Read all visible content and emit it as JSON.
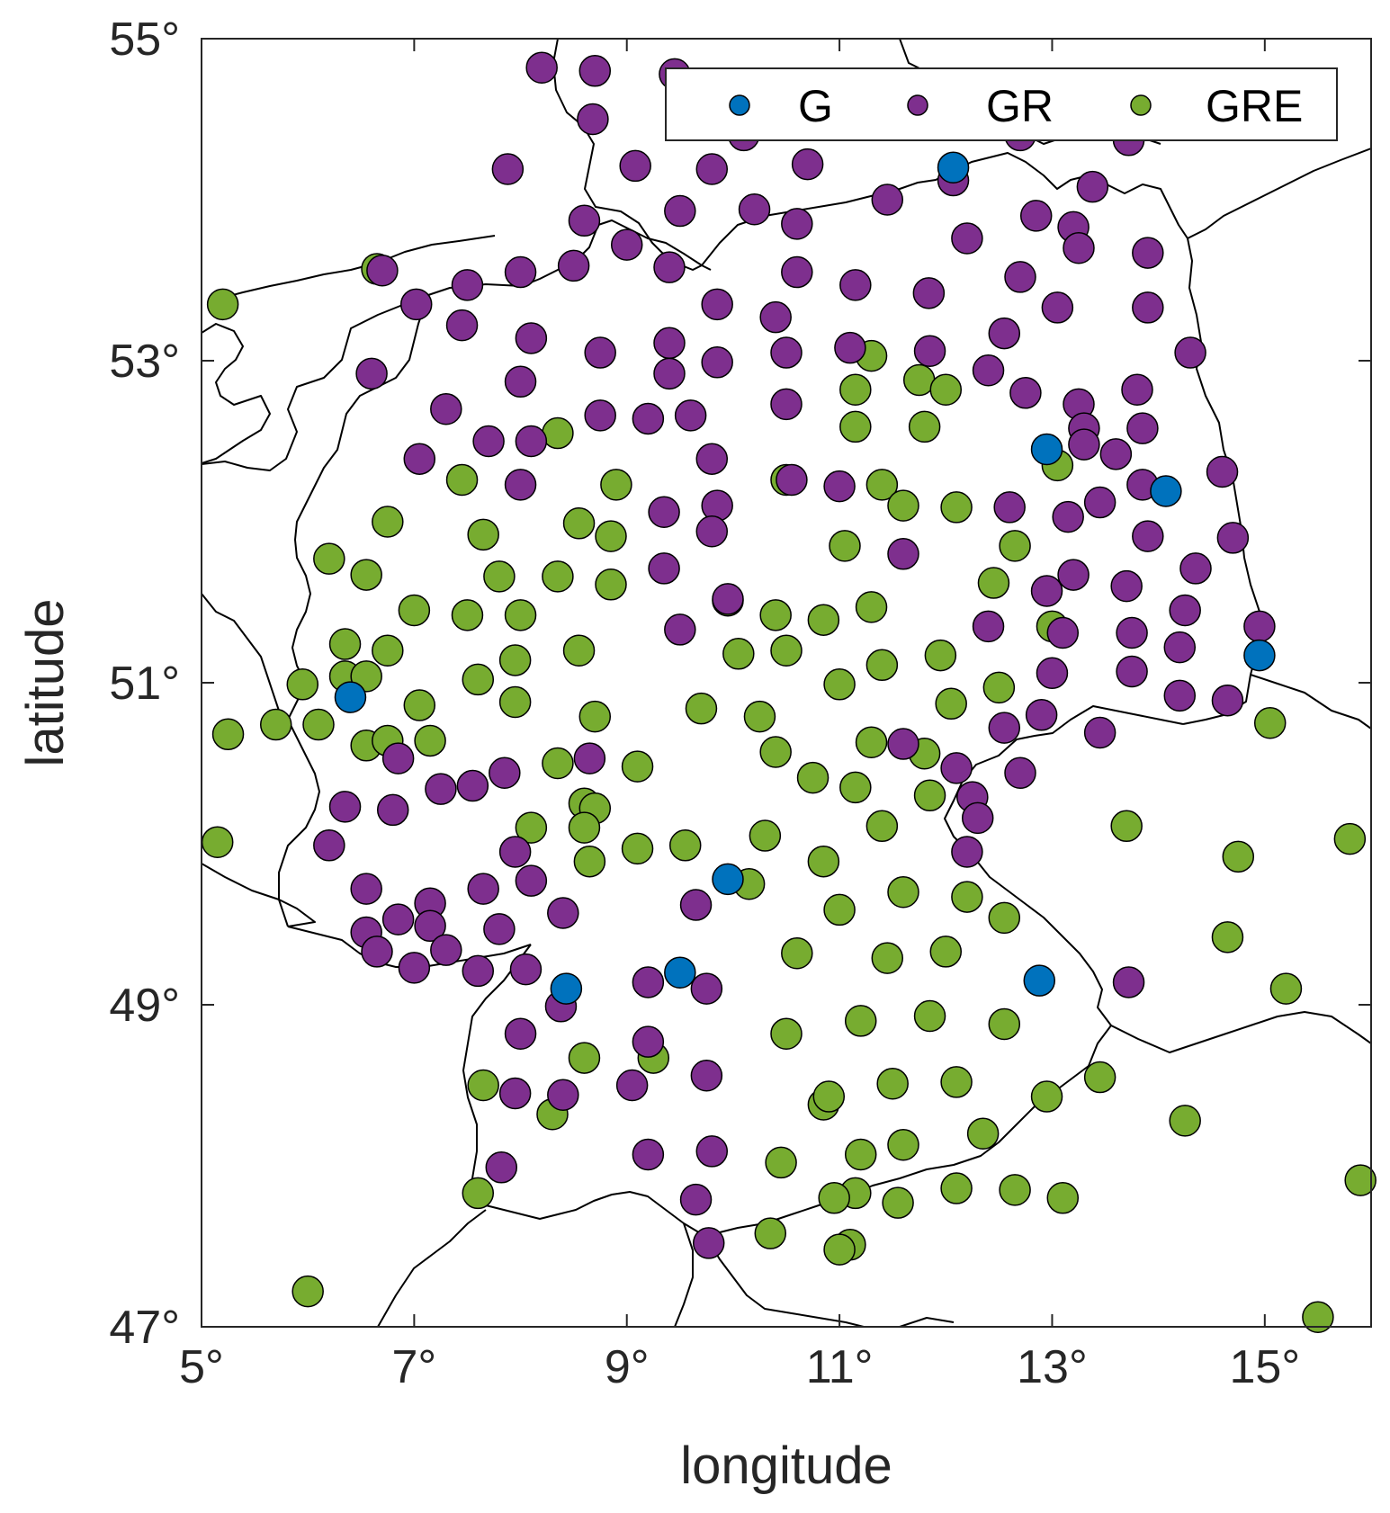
{
  "chart_data": {
    "type": "scatter",
    "map": "Germany and neighbouring regions",
    "xlabel": "longitude",
    "ylabel": "latitude",
    "xlim": [
      5,
      16
    ],
    "ylim": [
      47,
      55
    ],
    "xticks": [
      5,
      7,
      9,
      11,
      13,
      15
    ],
    "yticks": [
      47,
      49,
      51,
      53,
      55
    ],
    "xtick_labels": [
      "5°",
      "7°",
      "9°",
      "11°",
      "13°",
      "15°"
    ],
    "ytick_labels": [
      "47°",
      "49°",
      "51°",
      "53°",
      "55°"
    ],
    "legend_position": "top-right",
    "legend": [
      "G",
      "GR",
      "GRE"
    ],
    "series": [
      {
        "name": "G",
        "color": "#0072BD",
        "points": [
          [
            12.07,
            54.2
          ],
          [
            12.95,
            52.45
          ],
          [
            14.07,
            52.19
          ],
          [
            14.95,
            51.17
          ],
          [
            6.4,
            50.91
          ],
          [
            9.95,
            49.78
          ],
          [
            9.5,
            49.2
          ],
          [
            8.43,
            49.1
          ],
          [
            12.88,
            49.15
          ]
        ]
      },
      {
        "name": "GR",
        "color": "#7E2F8E",
        "points": [
          [
            8.2,
            54.82
          ],
          [
            8.7,
            54.8
          ],
          [
            9.45,
            54.78
          ],
          [
            10.1,
            54.4
          ],
          [
            12.7,
            54.4
          ],
          [
            13.72,
            54.37
          ],
          [
            8.68,
            54.5
          ],
          [
            7.88,
            54.19
          ],
          [
            9.08,
            54.21
          ],
          [
            9.8,
            54.19
          ],
          [
            10.7,
            54.22
          ],
          [
            12.07,
            54.12
          ],
          [
            11.45,
            54.0
          ],
          [
            13.38,
            54.08
          ],
          [
            8.6,
            53.87
          ],
          [
            9.5,
            53.93
          ],
          [
            10.2,
            53.94
          ],
          [
            10.6,
            53.85
          ],
          [
            12.85,
            53.9
          ],
          [
            13.2,
            53.83
          ],
          [
            13.25,
            53.7
          ],
          [
            9.0,
            53.72
          ],
          [
            12.2,
            53.76
          ],
          [
            13.9,
            53.67
          ],
          [
            6.7,
            53.56
          ],
          [
            8.0,
            53.55
          ],
          [
            8.5,
            53.59
          ],
          [
            9.4,
            53.58
          ],
          [
            10.6,
            53.55
          ],
          [
            12.7,
            53.52
          ],
          [
            7.5,
            53.47
          ],
          [
            11.15,
            53.47
          ],
          [
            11.84,
            53.42
          ],
          [
            7.02,
            53.35
          ],
          [
            9.85,
            53.35
          ],
          [
            10.4,
            53.27
          ],
          [
            13.05,
            53.33
          ],
          [
            13.9,
            53.33
          ],
          [
            7.45,
            53.22
          ],
          [
            12.55,
            53.17
          ],
          [
            8.1,
            53.14
          ],
          [
            9.4,
            53.11
          ],
          [
            8.75,
            53.05
          ],
          [
            10.5,
            53.05
          ],
          [
            11.1,
            53.08
          ],
          [
            11.85,
            53.06
          ],
          [
            14.3,
            53.05
          ],
          [
            6.6,
            52.92
          ],
          [
            9.4,
            52.92
          ],
          [
            9.85,
            52.99
          ],
          [
            12.4,
            52.94
          ],
          [
            8.0,
            52.87
          ],
          [
            12.75,
            52.8
          ],
          [
            13.8,
            52.82
          ],
          [
            7.3,
            52.7
          ],
          [
            8.75,
            52.66
          ],
          [
            9.2,
            52.64
          ],
          [
            9.6,
            52.66
          ],
          [
            10.5,
            52.73
          ],
          [
            13.25,
            52.73
          ],
          [
            13.3,
            52.58
          ],
          [
            13.85,
            52.58
          ],
          [
            7.7,
            52.5
          ],
          [
            8.1,
            52.5
          ],
          [
            13.3,
            52.48
          ],
          [
            13.6,
            52.42
          ],
          [
            7.05,
            52.39
          ],
          [
            9.8,
            52.39
          ],
          [
            14.6,
            52.31
          ],
          [
            10.55,
            52.26
          ],
          [
            11.0,
            52.22
          ],
          [
            13.85,
            52.23
          ],
          [
            8.0,
            52.23
          ],
          [
            13.45,
            52.12
          ],
          [
            9.85,
            52.1
          ],
          [
            9.35,
            52.06
          ],
          [
            12.6,
            52.09
          ],
          [
            13.15,
            52.03
          ],
          [
            9.8,
            51.94
          ],
          [
            13.9,
            51.91
          ],
          [
            14.7,
            51.9
          ],
          [
            11.6,
            51.8
          ],
          [
            9.35,
            51.71
          ],
          [
            14.35,
            51.71
          ],
          [
            13.2,
            51.67
          ],
          [
            13.7,
            51.6
          ],
          [
            12.95,
            51.57
          ],
          [
            9.95,
            51.52
          ],
          [
            14.25,
            51.45
          ],
          [
            12.4,
            51.35
          ],
          [
            9.5,
            51.33
          ],
          [
            14.95,
            51.35
          ],
          [
            13.1,
            51.31
          ],
          [
            13.75,
            51.31
          ],
          [
            14.2,
            51.22
          ],
          [
            13.0,
            51.06
          ],
          [
            13.75,
            51.07
          ],
          [
            14.2,
            50.92
          ],
          [
            14.65,
            50.89
          ],
          [
            12.9,
            50.8
          ],
          [
            12.55,
            50.72
          ],
          [
            13.45,
            50.69
          ],
          [
            11.6,
            50.62
          ],
          [
            6.85,
            50.53
          ],
          [
            8.65,
            50.53
          ],
          [
            7.85,
            50.44
          ],
          [
            12.7,
            50.44
          ],
          [
            12.1,
            50.47
          ],
          [
            7.25,
            50.34
          ],
          [
            7.55,
            50.36
          ],
          [
            6.35,
            50.23
          ],
          [
            6.8,
            50.21
          ],
          [
            12.25,
            50.29
          ],
          [
            12.3,
            50.16
          ],
          [
            6.2,
            49.99
          ],
          [
            12.2,
            49.95
          ],
          [
            7.95,
            49.95
          ],
          [
            8.1,
            49.77
          ],
          [
            6.55,
            49.72
          ],
          [
            7.65,
            49.72
          ],
          [
            9.65,
            49.62
          ],
          [
            6.85,
            49.53
          ],
          [
            7.15,
            49.63
          ],
          [
            7.15,
            49.49
          ],
          [
            6.55,
            49.45
          ],
          [
            7.8,
            49.47
          ],
          [
            8.4,
            49.57
          ],
          [
            6.65,
            49.33
          ],
          [
            7.3,
            49.34
          ],
          [
            7.0,
            49.23
          ],
          [
            7.6,
            49.21
          ],
          [
            8.05,
            49.22
          ],
          [
            9.2,
            49.14
          ],
          [
            9.75,
            49.1
          ],
          [
            13.72,
            49.14
          ],
          [
            8.38,
            48.99
          ],
          [
            8.0,
            48.82
          ],
          [
            9.2,
            48.77
          ],
          [
            9.75,
            48.56
          ],
          [
            9.05,
            48.5
          ],
          [
            7.95,
            48.45
          ],
          [
            8.4,
            48.44
          ],
          [
            9.2,
            48.07
          ],
          [
            9.8,
            48.09
          ],
          [
            7.82,
            47.99
          ],
          [
            9.65,
            47.79
          ],
          [
            9.77,
            47.52
          ]
        ]
      },
      {
        "name": "GRE",
        "color": "#77AC30",
        "points": [
          [
            5.2,
            53.35
          ],
          [
            6.65,
            53.57
          ],
          [
            11.3,
            53.03
          ],
          [
            11.75,
            52.88
          ],
          [
            12.0,
            52.82
          ],
          [
            11.15,
            52.82
          ],
          [
            11.15,
            52.59
          ],
          [
            11.8,
            52.59
          ],
          [
            8.35,
            52.55
          ],
          [
            13.05,
            52.35
          ],
          [
            7.45,
            52.26
          ],
          [
            10.5,
            52.26
          ],
          [
            8.9,
            52.23
          ],
          [
            11.4,
            52.23
          ],
          [
            11.6,
            52.1
          ],
          [
            12.1,
            52.09
          ],
          [
            6.75,
            52.0
          ],
          [
            8.55,
            51.99
          ],
          [
            7.65,
            51.92
          ],
          [
            8.85,
            51.91
          ],
          [
            11.05,
            51.85
          ],
          [
            12.65,
            51.85
          ],
          [
            6.2,
            51.77
          ],
          [
            6.55,
            51.67
          ],
          [
            7.8,
            51.66
          ],
          [
            8.35,
            51.66
          ],
          [
            12.45,
            51.62
          ],
          [
            8.85,
            51.61
          ],
          [
            9.95,
            51.51
          ],
          [
            11.3,
            51.47
          ],
          [
            7.0,
            51.45
          ],
          [
            7.5,
            51.42
          ],
          [
            8.0,
            51.42
          ],
          [
            10.4,
            51.42
          ],
          [
            10.85,
            51.39
          ],
          [
            13.0,
            51.35
          ],
          [
            6.35,
            51.24
          ],
          [
            6.75,
            51.2
          ],
          [
            8.55,
            51.2
          ],
          [
            10.5,
            51.2
          ],
          [
            10.05,
            51.18
          ],
          [
            7.95,
            51.14
          ],
          [
            11.95,
            51.17
          ],
          [
            11.4,
            51.11
          ],
          [
            6.35,
            51.04
          ],
          [
            6.55,
            51.04
          ],
          [
            5.95,
            50.99
          ],
          [
            7.6,
            51.02
          ],
          [
            11.0,
            50.99
          ],
          [
            12.5,
            50.97
          ],
          [
            7.05,
            50.86
          ],
          [
            7.95,
            50.88
          ],
          [
            9.7,
            50.84
          ],
          [
            12.05,
            50.87
          ],
          [
            5.25,
            50.68
          ],
          [
            5.7,
            50.74
          ],
          [
            6.1,
            50.74
          ],
          [
            6.55,
            50.61
          ],
          [
            6.75,
            50.64
          ],
          [
            7.15,
            50.64
          ],
          [
            8.7,
            50.79
          ],
          [
            10.25,
            50.79
          ],
          [
            15.05,
            50.75
          ],
          [
            10.4,
            50.57
          ],
          [
            11.3,
            50.63
          ],
          [
            11.8,
            50.56
          ],
          [
            8.35,
            50.5
          ],
          [
            9.1,
            50.48
          ],
          [
            10.75,
            50.41
          ],
          [
            11.15,
            50.35
          ],
          [
            11.85,
            50.3
          ],
          [
            8.6,
            50.25
          ],
          [
            8.7,
            50.22
          ],
          [
            5.15,
            50.01
          ],
          [
            8.1,
            50.1
          ],
          [
            8.6,
            50.1
          ],
          [
            10.3,
            50.05
          ],
          [
            11.4,
            50.11
          ],
          [
            13.7,
            50.11
          ],
          [
            15.8,
            50.03
          ],
          [
            9.1,
            49.97
          ],
          [
            9.55,
            49.99
          ],
          [
            8.65,
            49.89
          ],
          [
            10.85,
            49.89
          ],
          [
            14.75,
            49.92
          ],
          [
            10.15,
            49.75
          ],
          [
            11.6,
            49.7
          ],
          [
            12.2,
            49.67
          ],
          [
            11.0,
            49.59
          ],
          [
            12.55,
            49.54
          ],
          [
            14.65,
            49.42
          ],
          [
            10.6,
            49.32
          ],
          [
            11.45,
            49.29
          ],
          [
            12.0,
            49.33
          ],
          [
            15.2,
            49.1
          ],
          [
            11.2,
            48.9
          ],
          [
            11.85,
            48.93
          ],
          [
            12.55,
            48.88
          ],
          [
            10.5,
            48.82
          ],
          [
            8.6,
            48.67
          ],
          [
            9.25,
            48.67
          ],
          [
            7.65,
            48.5
          ],
          [
            11.5,
            48.51
          ],
          [
            12.1,
            48.52
          ],
          [
            13.45,
            48.55
          ],
          [
            10.85,
            48.38
          ],
          [
            10.9,
            48.43
          ],
          [
            12.95,
            48.43
          ],
          [
            8.3,
            48.32
          ],
          [
            14.25,
            48.28
          ],
          [
            12.35,
            48.2
          ],
          [
            11.6,
            48.13
          ],
          [
            11.2,
            48.07
          ],
          [
            10.45,
            48.02
          ],
          [
            15.9,
            47.91
          ],
          [
            12.1,
            47.86
          ],
          [
            12.65,
            47.85
          ],
          [
            7.6,
            47.83
          ],
          [
            11.15,
            47.83
          ],
          [
            10.95,
            47.8
          ],
          [
            11.55,
            47.77
          ],
          [
            13.1,
            47.8
          ],
          [
            10.35,
            47.58
          ],
          [
            11.1,
            47.51
          ],
          [
            11.0,
            47.48
          ],
          [
            6.0,
            47.22
          ],
          [
            15.5,
            47.06
          ]
        ]
      }
    ]
  }
}
